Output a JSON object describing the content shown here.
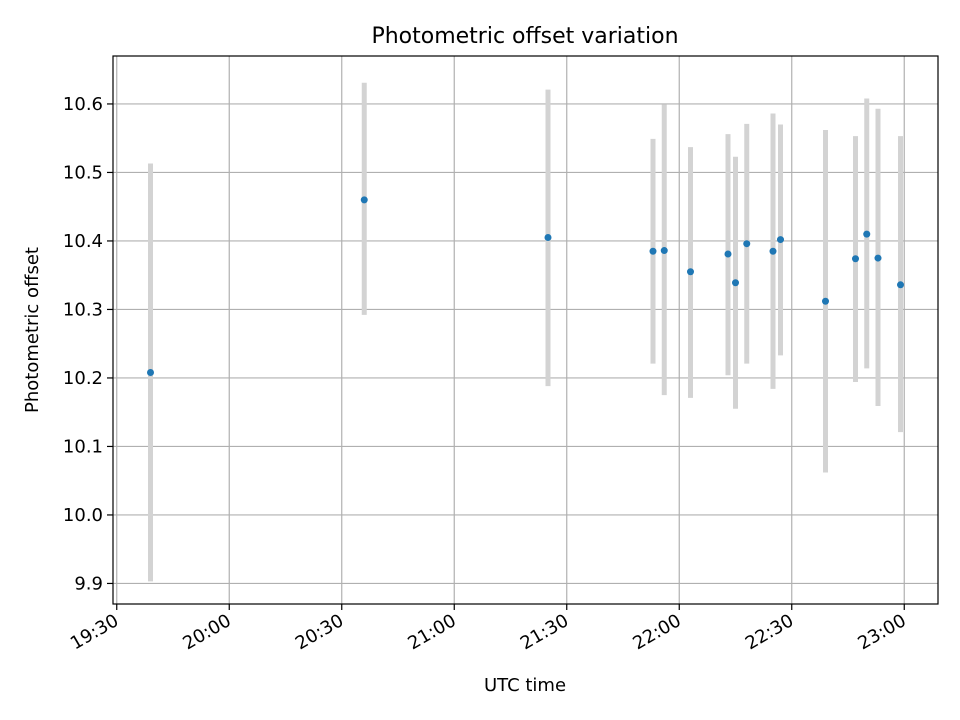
{
  "chart_data": {
    "type": "scatter",
    "title": "Photometric offset variation",
    "xlabel": "UTC time",
    "ylabel": "Photometric offset",
    "xlim": [
      "19:29",
      "23:09"
    ],
    "ylim": [
      9.87,
      10.67
    ],
    "x_ticks": [
      "19:30",
      "20:00",
      "20:30",
      "21:00",
      "21:30",
      "22:00",
      "22:30",
      "23:00"
    ],
    "y_ticks": [
      "9.9",
      "10.0",
      "10.1",
      "10.2",
      "10.3",
      "10.4",
      "10.5",
      "10.6"
    ],
    "grid": true,
    "colors": {
      "point": "#1f77b4",
      "errorbar": "#d3d3d3",
      "grid": "#b0b0b0"
    },
    "series": [
      {
        "x": [
          "19:39",
          "20:36",
          "21:25",
          "21:53",
          "21:56",
          "22:03",
          "22:13",
          "22:15",
          "22:18",
          "22:25",
          "22:27",
          "22:39",
          "22:47",
          "22:50",
          "22:53",
          "22:59"
        ],
        "y": [
          10.208,
          10.46,
          10.405,
          10.385,
          10.386,
          10.355,
          10.381,
          10.339,
          10.396,
          10.385,
          10.402,
          10.312,
          10.374,
          10.41,
          10.375,
          10.336
        ],
        "yerr_low": [
          9.903,
          10.292,
          10.188,
          10.221,
          10.175,
          10.171,
          10.204,
          10.155,
          10.221,
          10.184,
          10.233,
          10.062,
          10.194,
          10.214,
          10.159,
          10.121
        ],
        "yerr_high": [
          10.513,
          10.631,
          10.621,
          10.549,
          10.599,
          10.537,
          10.556,
          10.523,
          10.571,
          10.586,
          10.57,
          10.562,
          10.553,
          10.608,
          10.593,
          10.553
        ]
      }
    ]
  }
}
